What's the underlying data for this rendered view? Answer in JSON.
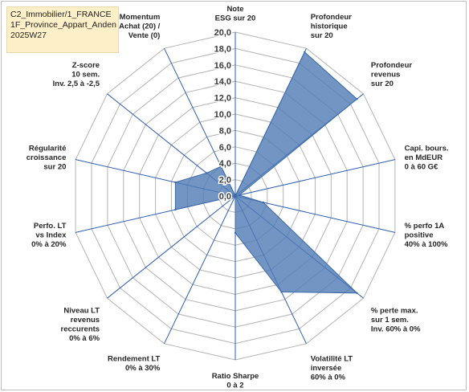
{
  "title": {
    "lines": [
      "C2_Immobilier/1_FRANCE",
      "1F_Province_Appart_Anden",
      "2025W27"
    ]
  },
  "colors": {
    "series_fill": "#4f7ab5",
    "series_stroke": "#3b6aa8",
    "axis_spoke": "#2f5fb0",
    "grid": "#b3b3b3",
    "title_bg": "#fdefc8"
  },
  "chart_data": {
    "type": "radar",
    "axis_min": 0,
    "axis_max": 20,
    "tick_step": 2,
    "tick_labels": [
      "0,0",
      "2,0",
      "4,0",
      "6,0",
      "8,0",
      "10,0",
      "12,0",
      "14,0",
      "16,0",
      "18,0",
      "20,0"
    ],
    "grid": true,
    "categories": [
      [
        "Note",
        "ESG sur 20"
      ],
      [
        "Profondeur",
        "historique",
        "sur 20"
      ],
      [
        "Profondeur",
        "revenus",
        "sur 20"
      ],
      [
        "Capi. bours.",
        "en MdEUR",
        "0 à 60 G€"
      ],
      [
        "% perfo 1A",
        "positive",
        "40% à 100%"
      ],
      [
        "% perte max.",
        "sur 1 sem.",
        "Inv. 60% à 0%"
      ],
      [
        "Volatilité LT",
        "inversée",
        "60% à 0%"
      ],
      [
        "Ratio Sharpe",
        "0 à 2"
      ],
      [
        "Rendement LT",
        "0% à 30%"
      ],
      [
        "Niveau LT",
        "revenus",
        "reccurents",
        "0% à 6%"
      ],
      [
        "Perfo. LT",
        "vs Index",
        "0% à 20%"
      ],
      [
        "Régularité",
        "croissance",
        "sur 20"
      ],
      [
        "Z-score",
        "10 sem.",
        "Inv. 2,5 à -2,5"
      ],
      [
        "Momentum",
        "Achat (20) /",
        "Vente (0)"
      ]
    ],
    "series": [
      {
        "values": [
          0,
          19.5,
          19.0,
          0.5,
          3.5,
          19.0,
          13.0,
          4.5,
          0,
          0,
          7.5,
          7.5,
          4.5,
          4.0
        ]
      }
    ]
  }
}
